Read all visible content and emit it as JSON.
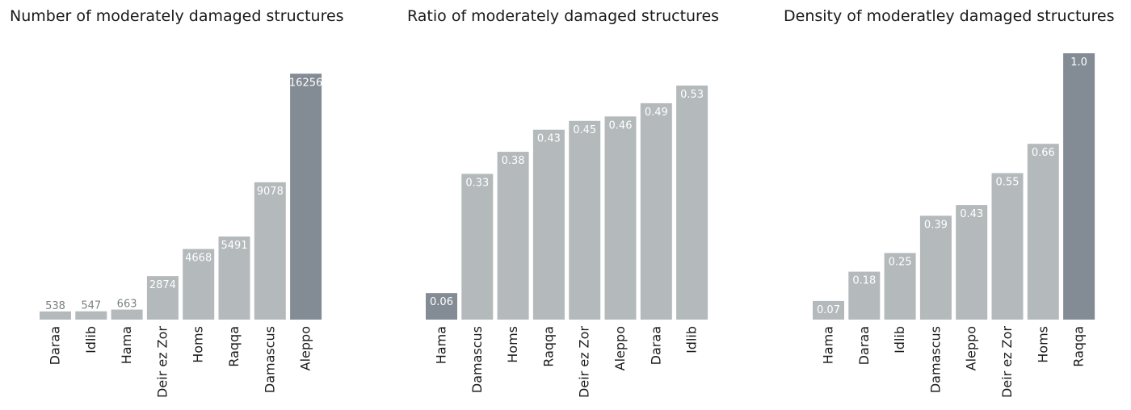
{
  "chart_data": [
    {
      "type": "bar",
      "title": "Number of moderately damaged structures",
      "categories": [
        "Daraa",
        "Idlib",
        "Hama",
        "Deir ez Zor",
        "Homs",
        "Raqqa",
        "Damascus",
        "Aleppo"
      ],
      "values": [
        538,
        547,
        663,
        2874,
        4668,
        5491,
        9078,
        16256
      ],
      "labels": [
        "538",
        "547",
        "663",
        "2874",
        "4668",
        "5491",
        "9078",
        "16256"
      ],
      "highlight_index": 7,
      "ylim": [
        0,
        17500
      ],
      "xlabel": "",
      "ylabel": "",
      "grid": false
    },
    {
      "type": "bar",
      "title": "Ratio of moderately damaged structures",
      "categories": [
        "Hama",
        "Damascus",
        "Homs",
        "Raqqa",
        "Deir ez Zor",
        "Aleppo",
        "Daraa",
        "Idlib"
      ],
      "values": [
        0.06,
        0.33,
        0.38,
        0.43,
        0.45,
        0.46,
        0.49,
        0.53
      ],
      "labels": [
        "0.06",
        "0.33",
        "0.38",
        "0.43",
        "0.45",
        "0.46",
        "0.49",
        "0.53"
      ],
      "highlight_index": 0,
      "ylim": [
        0,
        0.583
      ],
      "xlabel": "",
      "ylabel": "",
      "grid": false
    },
    {
      "type": "bar",
      "title": "Density of moderatley damaged structures",
      "categories": [
        "Hama",
        "Daraa",
        "Idlib",
        "Damascus",
        "Aleppo",
        "Deir ez Zor",
        "Homs",
        "Raqqa"
      ],
      "values": [
        0.07,
        0.18,
        0.25,
        0.39,
        0.43,
        0.55,
        0.66,
        1.0
      ],
      "labels": [
        "0.07",
        "0.18",
        "0.25",
        "0.39",
        "0.43",
        "0.55",
        "0.66",
        "1.0"
      ],
      "highlight_index": 7,
      "ylim": [
        0,
        1.0
      ],
      "xlabel": "",
      "ylabel": "",
      "grid": false
    }
  ],
  "colors": {
    "bar": "#b4b9bb",
    "highlight": "#838b94",
    "label_on_bar": "#ffffff",
    "label_small": "#7a8085",
    "text": "#1a1a1a"
  }
}
